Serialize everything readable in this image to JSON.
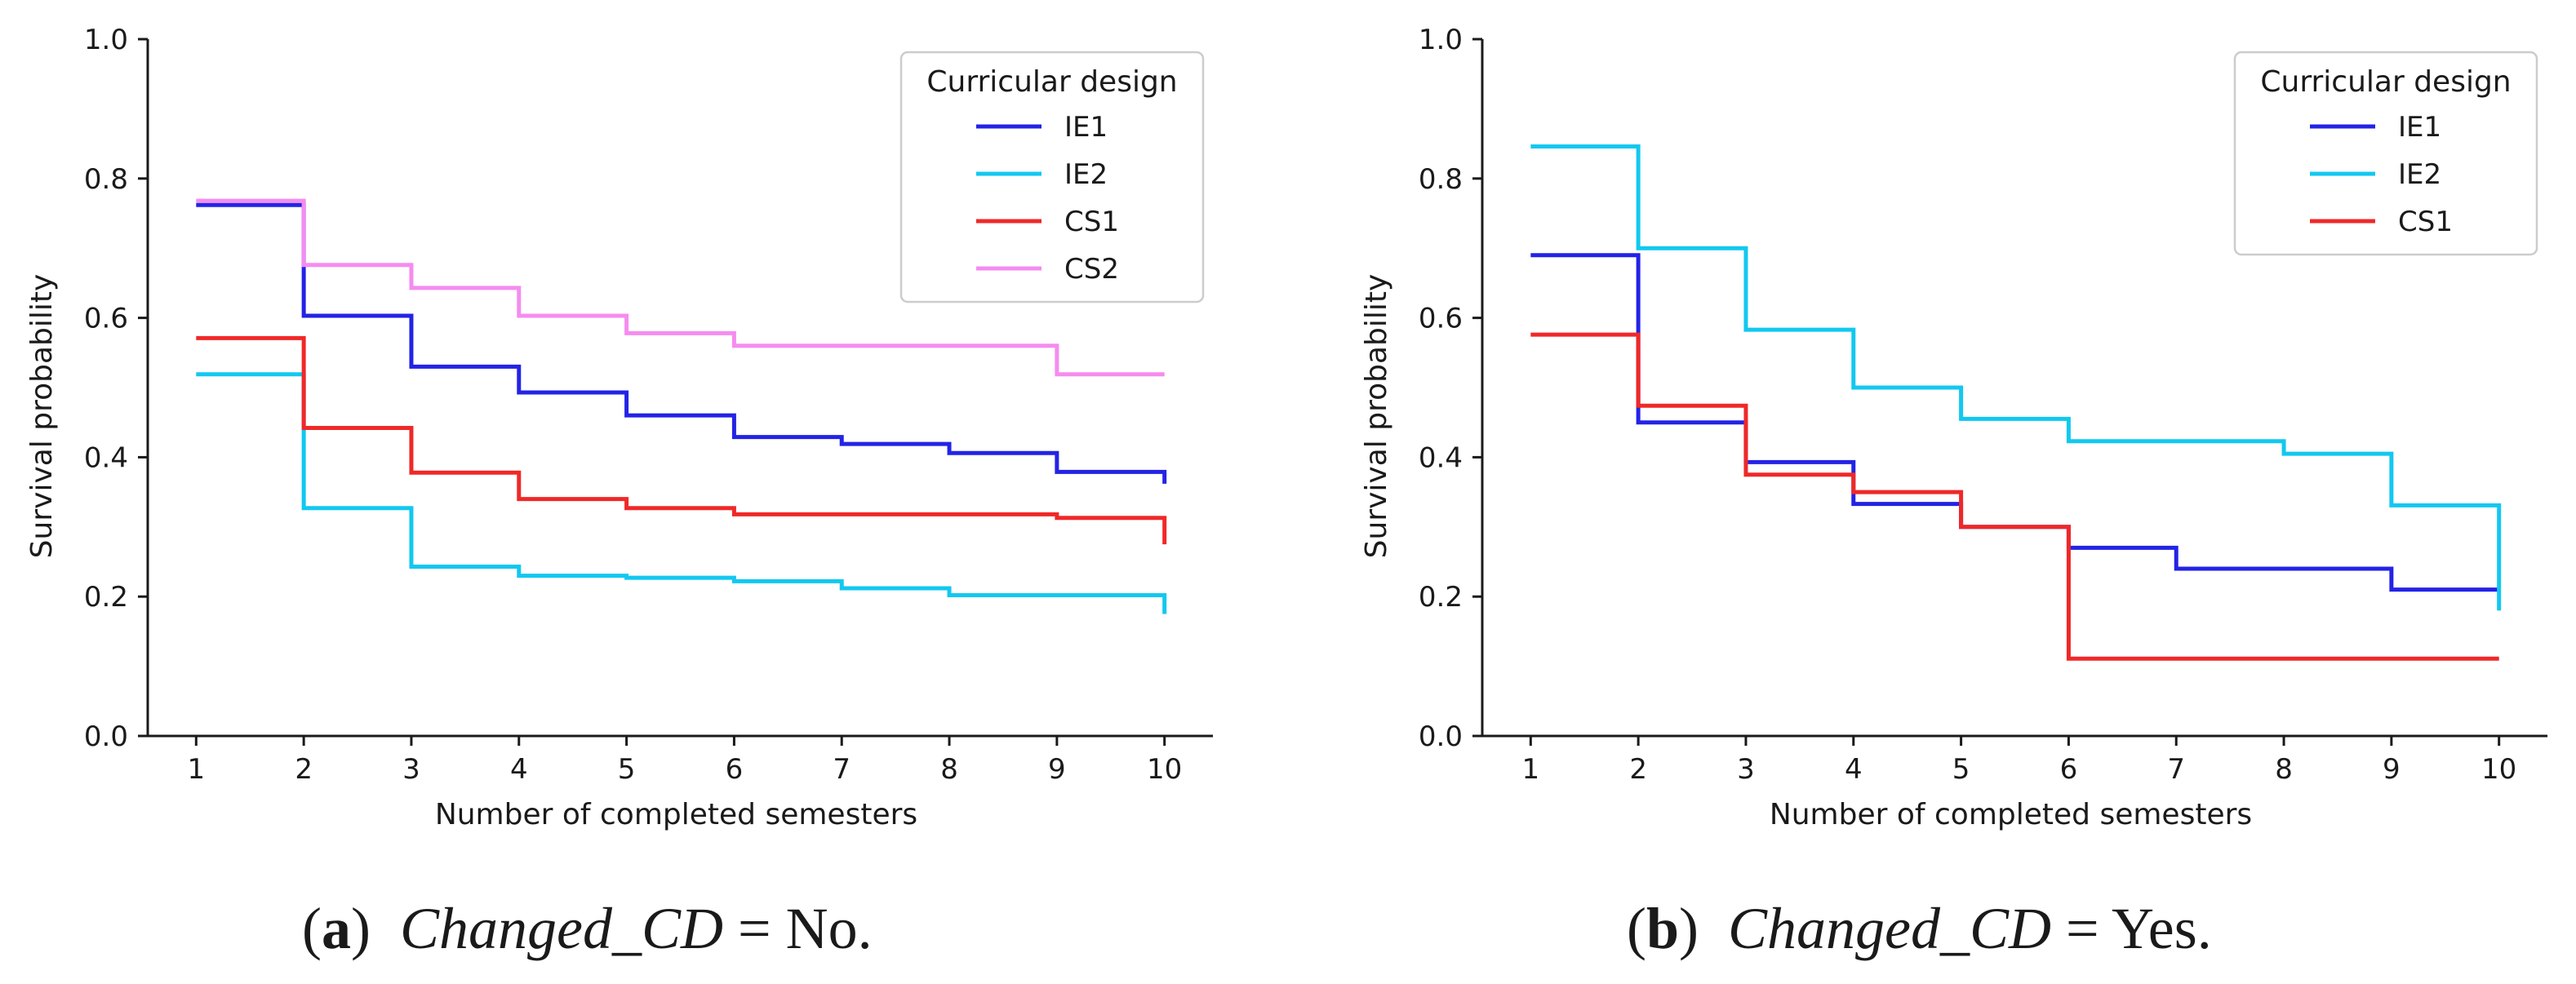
{
  "chart_data": [
    {
      "type": "line",
      "subtype": "step",
      "caption": {
        "letter": "a",
        "variable": "Changed_CD",
        "equals": "=",
        "value": "No."
      },
      "xlabel": "Number of completed semesters",
      "ylabel": "Survival probability",
      "xlim": [
        0.55,
        10.45
      ],
      "ylim": [
        0,
        1.0
      ],
      "xticks": [
        1,
        2,
        3,
        4,
        5,
        6,
        7,
        8,
        9,
        10
      ],
      "yticks": [
        "0.0",
        "0.2",
        "0.4",
        "0.6",
        "0.8",
        "1.0"
      ],
      "legend": {
        "title": "Curricular design",
        "placement": "top-right"
      },
      "series": [
        {
          "name": "IE1",
          "color": "#2323e6",
          "x": [
            1,
            2,
            3,
            4,
            5,
            6,
            7,
            8,
            9,
            10
          ],
          "y": [
            0.762,
            0.603,
            0.53,
            0.493,
            0.46,
            0.429,
            0.419,
            0.406,
            0.379,
            0.365
          ],
          "end_drop": 0.362
        },
        {
          "name": "IE2",
          "color": "#12c8f0",
          "x": [
            1,
            2,
            3,
            4,
            5,
            6,
            7,
            8,
            9,
            10
          ],
          "y": [
            0.519,
            0.327,
            0.243,
            0.23,
            0.227,
            0.222,
            0.212,
            0.202,
            0.202,
            0.2
          ],
          "end_drop": 0.175
        },
        {
          "name": "CS1",
          "color": "#f02828",
          "x": [
            1,
            2,
            3,
            4,
            5,
            6,
            7,
            8,
            9,
            10
          ],
          "y": [
            0.571,
            0.442,
            0.378,
            0.34,
            0.327,
            0.318,
            0.318,
            0.318,
            0.313,
            0.311
          ],
          "end_drop": 0.275
        },
        {
          "name": "CS2",
          "color": "#f58cf0",
          "x": [
            1,
            2,
            3,
            4,
            5,
            6,
            7,
            8,
            9,
            10
          ],
          "y": [
            0.768,
            0.676,
            0.643,
            0.603,
            0.578,
            0.56,
            0.56,
            0.56,
            0.519,
            0.519
          ],
          "end_drop": null
        }
      ]
    },
    {
      "type": "line",
      "subtype": "step",
      "caption": {
        "letter": "b",
        "variable": "Changed_CD",
        "equals": "=",
        "value": "Yes."
      },
      "xlabel": "Number of completed semesters",
      "ylabel": "Survival probability",
      "xlim": [
        0.55,
        10.45
      ],
      "ylim": [
        0,
        1.0
      ],
      "xticks": [
        1,
        2,
        3,
        4,
        5,
        6,
        7,
        8,
        9,
        10
      ],
      "yticks": [
        "0.0",
        "0.2",
        "0.4",
        "0.6",
        "0.8",
        "1.0"
      ],
      "legend": {
        "title": "Curricular design",
        "placement": "top-right"
      },
      "series": [
        {
          "name": "IE1",
          "color": "#2323e6",
          "x": [
            1,
            2,
            3,
            4,
            5,
            6,
            7,
            8,
            9,
            10
          ],
          "y": [
            0.69,
            0.45,
            0.393,
            0.333,
            0.3,
            0.27,
            0.24,
            0.24,
            0.21,
            0.21
          ],
          "end_drop": null
        },
        {
          "name": "IE2",
          "color": "#12c8f0",
          "x": [
            1,
            2,
            3,
            4,
            5,
            6,
            7,
            8,
            9,
            10
          ],
          "y": [
            0.846,
            0.7,
            0.583,
            0.5,
            0.455,
            0.423,
            0.423,
            0.405,
            0.331,
            0.331
          ],
          "end_drop": 0.18
        },
        {
          "name": "CS1",
          "color": "#f02828",
          "x": [
            1,
            2,
            3,
            4,
            5,
            6,
            7,
            8,
            9,
            10
          ],
          "y": [
            0.576,
            0.474,
            0.375,
            0.35,
            0.3,
            0.111,
            0.111,
            0.111,
            0.111,
            0.111
          ],
          "end_drop": null
        }
      ]
    }
  ]
}
